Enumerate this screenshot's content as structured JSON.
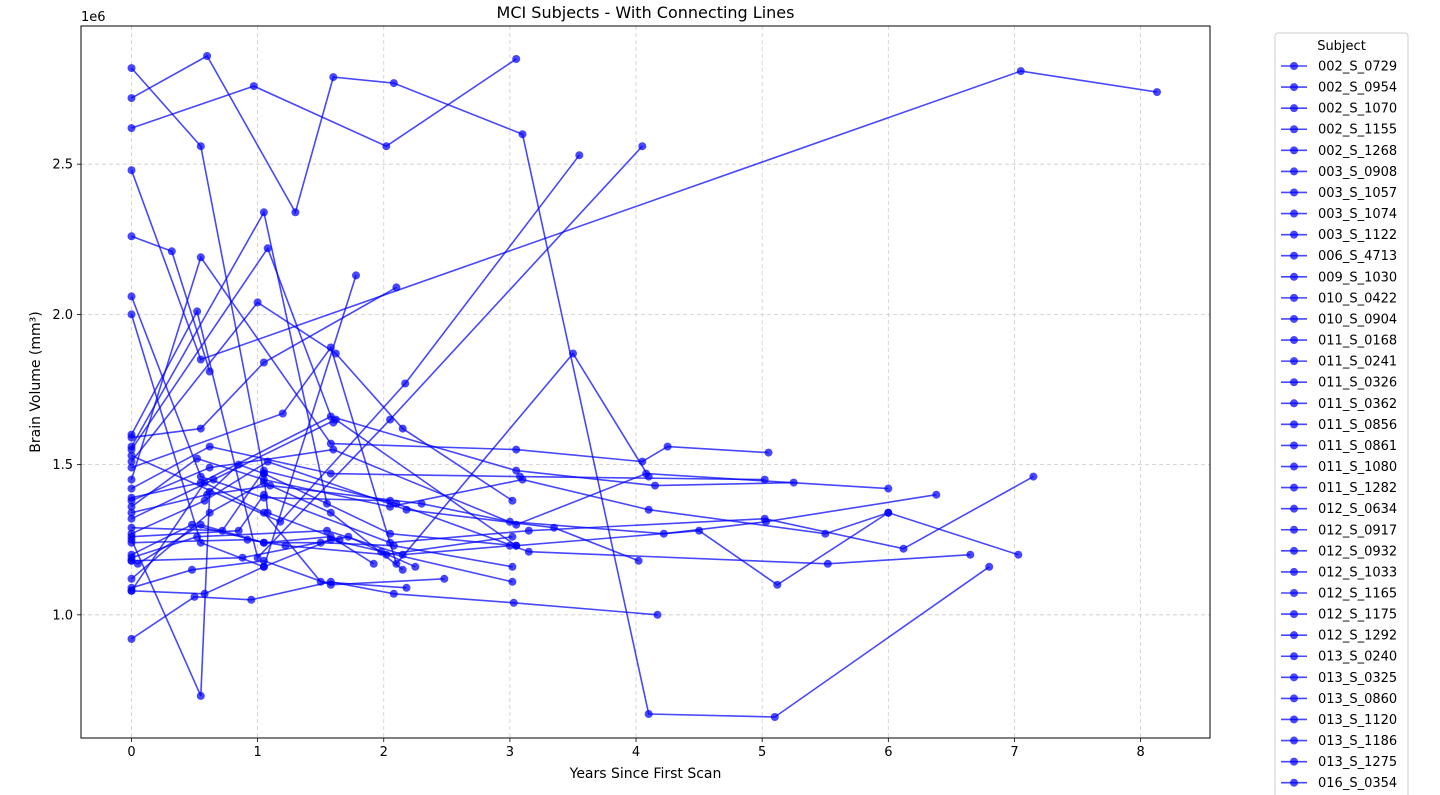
{
  "chart_data": {
    "type": "line",
    "title": "MCI Subjects - With Connecting Lines",
    "xlabel": "Years Since First Scan",
    "ylabel": "Brain Volume (mm³)",
    "y_multiplier": "1e6",
    "xlim": [
      -0.4,
      8.55
    ],
    "ylim": [
      590000,
      2960000
    ],
    "xticks": [
      0,
      1,
      2,
      3,
      4,
      5,
      6,
      7,
      8
    ],
    "xtick_labels": [
      "0",
      "1",
      "2",
      "3",
      "4",
      "5",
      "6",
      "7",
      "8"
    ],
    "yticks": [
      1000000,
      1500000,
      2000000,
      2500000
    ],
    "ytick_labels": [
      "1.0",
      "1.5",
      "2.0",
      "2.5"
    ],
    "grid": true,
    "series_color": "#0000ff",
    "legend": {
      "title": "Subject",
      "placement": "outside-right",
      "entries": [
        "002_S_0729",
        "002_S_0954",
        "002_S_1070",
        "002_S_1155",
        "002_S_1268",
        "003_S_0908",
        "003_S_1057",
        "003_S_1074",
        "003_S_1122",
        "006_S_4713",
        "009_S_1030",
        "010_S_0422",
        "010_S_0904",
        "011_S_0168",
        "011_S_0241",
        "011_S_0326",
        "011_S_0362",
        "011_S_0856",
        "011_S_0861",
        "011_S_1080",
        "011_S_1282",
        "012_S_0634",
        "012_S_0917",
        "012_S_0932",
        "012_S_1033",
        "012_S_1165",
        "012_S_1175",
        "012_S_1292",
        "013_S_0240",
        "013_S_0325",
        "013_S_0860",
        "013_S_1120",
        "013_S_1186",
        "013_S_1275",
        "016_S_0354"
      ]
    },
    "series": [
      {
        "x": [
          0,
          0.55,
          1.05,
          2.05,
          3.05
        ],
        "y": [
          2820000,
          2560000,
          1470000,
          1270000,
          1230000
        ]
      },
      {
        "x": [
          0,
          0.97,
          2.02,
          3.05
        ],
        "y": [
          2620000,
          2760000,
          2560000,
          2850000
        ]
      },
      {
        "x": [
          0,
          0.6,
          1.3,
          1.6,
          2.08,
          3.1,
          4.1,
          5.1,
          6.8
        ],
        "y": [
          2720000,
          2860000,
          2340000,
          2790000,
          2770000,
          2600000,
          670000,
          660000,
          1160000
        ]
      },
      {
        "x": [
          0,
          0.55,
          7.05,
          8.13
        ],
        "y": [
          2480000,
          1850000,
          2810000,
          2740000
        ]
      },
      {
        "x": [
          0,
          0.32,
          0.62
        ],
        "y": [
          2260000,
          2210000,
          1810000
        ]
      },
      {
        "x": [
          0,
          0.55,
          1.05,
          2.05
        ],
        "y": [
          2060000,
          1460000,
          1390000,
          1380000
        ]
      },
      {
        "x": [
          0,
          0.55,
          1.05,
          1.78
        ],
        "y": [
          2000000,
          1240000,
          1160000,
          2130000
        ]
      },
      {
        "x": [
          0,
          0.52,
          1.0,
          2.05,
          4.05
        ],
        "y": [
          1600000,
          2010000,
          1190000,
          1650000,
          2560000
        ]
      },
      {
        "x": [
          0,
          0.55,
          1.05,
          2.1
        ],
        "y": [
          1590000,
          1620000,
          1840000,
          2090000
        ]
      },
      {
        "x": [
          0,
          1.05,
          1.55
        ],
        "y": [
          1560000,
          2340000,
          1370000
        ]
      },
      {
        "x": [
          0,
          1.08,
          1.6
        ],
        "y": [
          1550000,
          2220000,
          1640000
        ]
      },
      {
        "x": [
          0,
          1.18,
          2.17,
          3.55
        ],
        "y": [
          1530000,
          1310000,
          1770000,
          2530000
        ]
      },
      {
        "x": [
          0,
          1.0,
          1.62,
          2.15,
          3.02
        ],
        "y": [
          1510000,
          2040000,
          1870000,
          1620000,
          1380000
        ]
      },
      {
        "x": [
          0,
          1.2,
          1.58,
          2.1,
          3.5,
          4.1
        ],
        "y": [
          1490000,
          1670000,
          1890000,
          1170000,
          1870000,
          1460000
        ]
      },
      {
        "x": [
          0,
          0.55,
          1.58,
          3.05,
          4.05,
          4.25,
          5.05
        ],
        "y": [
          1450000,
          2190000,
          1570000,
          1550000,
          1510000,
          1560000,
          1540000
        ]
      },
      {
        "x": [
          0,
          0.62,
          1.58,
          3.08,
          5.02
        ],
        "y": [
          1420000,
          1560000,
          1470000,
          1460000,
          1450000
        ]
      },
      {
        "x": [
          0,
          0.55,
          1.58,
          3.05,
          4.15,
          5.25
        ],
        "y": [
          1390000,
          1440000,
          1660000,
          1480000,
          1430000,
          1440000
        ]
      },
      {
        "x": [
          0,
          0.62,
          1.6,
          3.05,
          4.08,
          6.0
        ],
        "y": [
          1380000,
          1490000,
          1550000,
          1300000,
          1470000,
          1420000
        ]
      },
      {
        "x": [
          0,
          0.52,
          1.05,
          2.05,
          3.1,
          4.1,
          5.5,
          6.0
        ],
        "y": [
          1360000,
          1520000,
          1450000,
          1360000,
          1450000,
          1350000,
          1270000,
          1340000
        ]
      },
      {
        "x": [
          0,
          0.6,
          1.1,
          2.3,
          3.0,
          4.22,
          5.03,
          6.38
        ],
        "y": [
          1340000,
          1400000,
          1430000,
          1370000,
          1310000,
          1270000,
          1310000,
          1400000
        ]
      },
      {
        "x": [
          0,
          0.65,
          1.62,
          3.05,
          4.5,
          5.12,
          6.0,
          7.03
        ],
        "y": [
          1320000,
          1450000,
          1650000,
          1230000,
          1280000,
          1100000,
          1340000,
          1200000
        ]
      },
      {
        "x": [
          0,
          0.72,
          1.05,
          2.1,
          3.15,
          5.52,
          6.65
        ],
        "y": [
          1290000,
          1280000,
          1480000,
          1370000,
          1210000,
          1170000,
          1200000
        ]
      },
      {
        "x": [
          0,
          0.58,
          1.08,
          2.18,
          3.35,
          4.02
        ],
        "y": [
          1270000,
          1380000,
          1510000,
          1350000,
          1290000,
          1180000
        ]
      },
      {
        "x": [
          0,
          0.85,
          1.05,
          2.05,
          3.15,
          5.02,
          6.12,
          7.15
        ],
        "y": [
          1260000,
          1280000,
          1400000,
          1240000,
          1280000,
          1320000,
          1220000,
          1460000
        ]
      },
      {
        "x": [
          0,
          0.92,
          1.22,
          2.02,
          3.02
        ],
        "y": [
          1240000,
          1250000,
          1230000,
          1200000,
          1260000
        ]
      },
      {
        "x": [
          0,
          0.48,
          1.05,
          1.5,
          2.08,
          3.02
        ],
        "y": [
          1200000,
          1300000,
          1240000,
          1240000,
          1230000,
          1160000
        ]
      },
      {
        "x": [
          0,
          0.52,
          1.55,
          2.15,
          3.0
        ],
        "y": [
          1190000,
          1260000,
          1280000,
          1200000,
          1230000
        ]
      },
      {
        "x": [
          0,
          0.88,
          1.72,
          1.98,
          2.25
        ],
        "y": [
          1180000,
          1190000,
          1260000,
          1210000,
          1160000
        ]
      },
      {
        "x": [
          0,
          0.05,
          0.55,
          1.05,
          1.58,
          1.92
        ],
        "y": [
          1180000,
          1170000,
          1300000,
          1240000,
          1260000,
          1170000
        ]
      },
      {
        "x": [
          0,
          0.62,
          1.05,
          1.58,
          2.15
        ],
        "y": [
          1120000,
          1340000,
          1440000,
          1340000,
          1150000
        ]
      },
      {
        "x": [
          0,
          0.48,
          1.05,
          1.58,
          2.48
        ],
        "y": [
          1090000,
          1150000,
          1180000,
          1100000,
          1120000
        ]
      },
      {
        "x": [
          0,
          0.58,
          1.05,
          1.5,
          2.18
        ],
        "y": [
          1080000,
          1440000,
          1340000,
          1110000,
          1090000
        ]
      },
      {
        "x": [
          0,
          0.58,
          1.05,
          1.58,
          3.02
        ],
        "y": [
          1080000,
          1070000,
          1160000,
          1250000,
          1110000
        ]
      },
      {
        "x": [
          0,
          0.5,
          0.95,
          1.58,
          2.08,
          3.03,
          4.17
        ],
        "y": [
          920000,
          1060000,
          1050000,
          1110000,
          1070000,
          1040000,
          1000000
        ]
      },
      {
        "x": [
          0,
          0.55,
          0.62,
          0.85,
          1.05,
          1.08,
          1.65
        ],
        "y": [
          1250000,
          730000,
          1410000,
          1500000,
          1470000,
          1340000,
          1250000
        ]
      }
    ]
  }
}
